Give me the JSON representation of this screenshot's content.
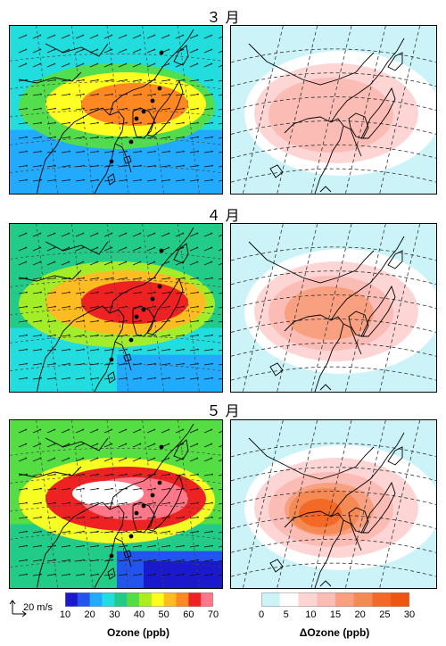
{
  "months": [
    {
      "label": "３ 月",
      "ozone_level": 40,
      "delta_level": 10
    },
    {
      "label": "４ 月",
      "ozone_level": 55,
      "delta_level": 12
    },
    {
      "label": "５ 月",
      "ozone_level": 65,
      "delta_level": 20
    }
  ],
  "ozone_colorbar": {
    "title": "Ozone (ppb)",
    "ticks": [
      "10",
      "20",
      "30",
      "40",
      "50",
      "60",
      "70"
    ],
    "colors": [
      "#1a1acc",
      "#2255ee",
      "#22aaff",
      "#22dddd",
      "#22cc88",
      "#55dd44",
      "#aaee22",
      "#ffff22",
      "#ffbb22",
      "#ff8822",
      "#ee2222",
      "#ff7788"
    ]
  },
  "delta_colorbar": {
    "title": "ΔOzone (ppb)",
    "ticks": [
      "0",
      "5",
      "10",
      "15",
      "20",
      "25",
      "30"
    ],
    "colors": [
      "#ccf4f8",
      "#ffffff",
      "#fdd5d5",
      "#fbbcb5",
      "#f8a080",
      "#f58a55",
      "#f26a25",
      "#ee5510"
    ]
  },
  "wind_scale": {
    "label": "20 m/s"
  },
  "chart_data": {
    "type": "heatmap",
    "panels": [
      {
        "month": "３ 月",
        "variable": "Ozone (ppb)",
        "range": [
          20,
          60
        ]
      },
      {
        "month": "３ 月",
        "variable": "ΔOzone (ppb)",
        "range": [
          0,
          10
        ]
      },
      {
        "month": "４ 月",
        "variable": "Ozone (ppb)",
        "range": [
          30,
          65
        ]
      },
      {
        "month": "４ 月",
        "variable": "ΔOzone (ppb)",
        "range": [
          0,
          15
        ]
      },
      {
        "month": "５ 月",
        "variable": "Ozone (ppb)",
        "range": [
          10,
          70
        ]
      },
      {
        "month": "５ 月",
        "variable": "ΔOzone (ppb)",
        "range": [
          0,
          30
        ]
      }
    ]
  }
}
